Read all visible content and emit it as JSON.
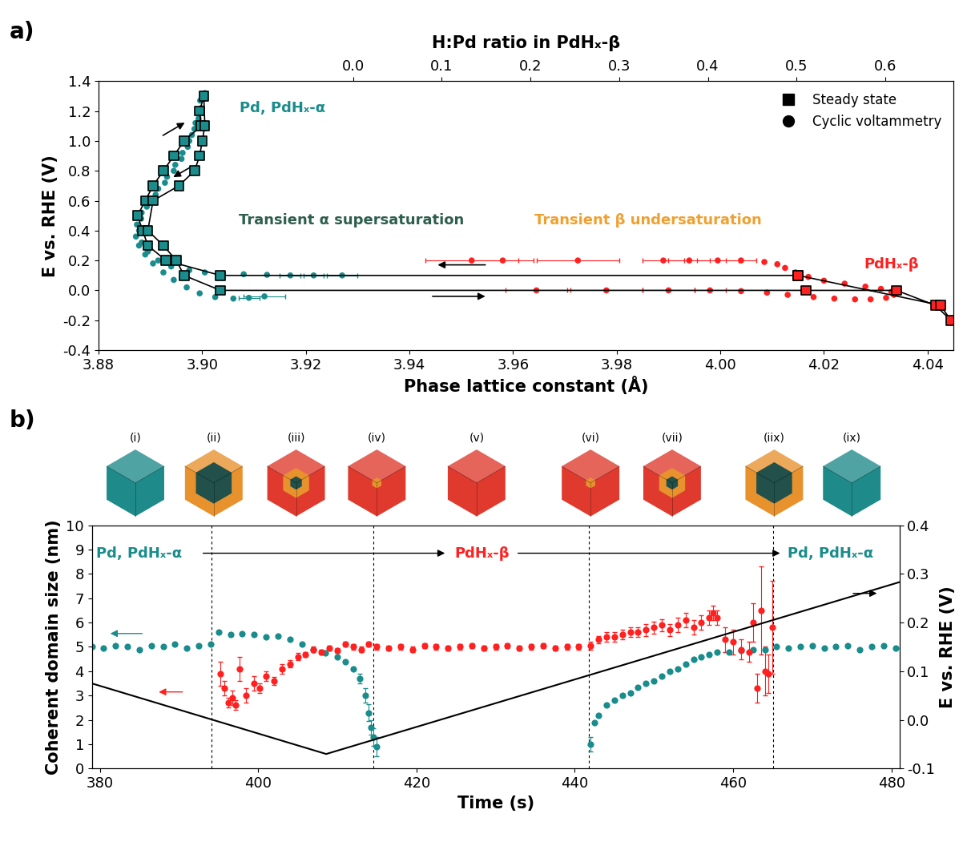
{
  "chart_data": [
    {
      "type": "scatter",
      "panel_label": "a)",
      "x_label": "Phase lattice constant (Å)",
      "y_label": "E vs. RHE (V)",
      "x2_label": "H:Pd ratio in PdHₓ-β",
      "xlim": [
        3.88,
        4.045
      ],
      "xticks": [
        3.88,
        {
          "value": 3.9,
          "label": "3.90"
        },
        3.92,
        3.94,
        3.96,
        3.98,
        {
          "value": 4.0,
          "label": "4.00"
        },
        4.02,
        4.04
      ],
      "ylim": [
        -0.4,
        1.4
      ],
      "yticks": [
        -0.4,
        -0.2,
        0.0,
        0.2,
        0.4,
        0.6,
        0.8,
        1.0,
        1.2,
        1.4
      ],
      "x2lim": [
        -0.287,
        0.677
      ],
      "x2ticks": [
        0.0,
        0.1,
        0.2,
        0.3,
        0.4,
        0.5,
        0.6
      ],
      "legend": "upper right",
      "annotations": [
        {
          "text": "Pd, PdHₓ-α",
          "color": "#1a8c8c"
        },
        {
          "text": "PdHₓ-β",
          "color": "#ff2020"
        },
        {
          "text": "Transient α supersaturation",
          "color": "#2e5e4e"
        },
        {
          "text": "Transient β undersaturation",
          "color": "#f0a030"
        }
      ],
      "series": [
        {
          "name": "Steady state",
          "marker": "square",
          "color": "#000000",
          "line_style": "solid",
          "x": [
            4.015,
            3.9035,
            3.893,
            3.8895,
            3.8885,
            3.8875,
            3.889,
            3.8905,
            3.8925,
            3.8945,
            3.8965,
            3.8998,
            3.8995,
            3.9003,
            3.9005,
            3.9,
            3.8995,
            3.8985,
            3.8955,
            3.8905,
            3.8895,
            3.8925,
            3.895,
            3.8965,
            3.9035,
            4.0165,
            4.034,
            4.0415,
            4.0445,
            4.0425,
            4.015
          ],
          "values": [
            0.1,
            0.1,
            0.2,
            0.3,
            0.4,
            0.5,
            0.6,
            0.7,
            0.8,
            0.9,
            1.0,
            1.1,
            1.2,
            1.3,
            1.1,
            1.0,
            0.9,
            0.8,
            0.7,
            0.6,
            0.4,
            0.3,
            0.2,
            0.1,
            0.0,
            0.0,
            0.0,
            -0.1,
            -0.2,
            -0.1,
            0.1
          ],
          "colors": [
            "#ff2020",
            "#1a8c8c",
            "#1a8c8c",
            "#1a8c8c",
            "#1a8c8c",
            "#1a8c8c",
            "#1a8c8c",
            "#1a8c8c",
            "#1a8c8c",
            "#1a8c8c",
            "#1a8c8c",
            "#1a8c8c",
            "#1a8c8c",
            "#1a8c8c",
            "#1a8c8c",
            "#1a8c8c",
            "#1a8c8c",
            "#1a8c8c",
            "#1a8c8c",
            "#1a8c8c",
            "#1a8c8c",
            "#1a8c8c",
            "#1a8c8c",
            "#1a8c8c",
            "#1a8c8c",
            "#ff2020",
            "#ff2020",
            "#ff2020",
            "#ff2020",
            "#ff2020",
            "#ff2020"
          ]
        },
        {
          "name": "Cyclic voltammetry",
          "marker": "circle",
          "color": "#000000",
          "x": [
            3.9005,
            3.9002,
            3.8998,
            3.8993,
            3.8985,
            3.8975,
            3.8962,
            3.8948,
            3.8932,
            3.8915,
            3.8898,
            3.8883,
            3.8874,
            3.8872,
            3.8878,
            3.889,
            3.8905,
            3.8925,
            3.8945,
            3.897,
            3.8995,
            3.9025,
            3.906,
            3.909,
            3.912,
            3.927,
            3.9215,
            3.917,
            3.9125,
            3.908,
            3.904,
            3.9005,
            3.8975,
            3.894,
            3.8915,
            3.8895,
            3.8883,
            3.8878,
            3.8882,
            3.8893,
            3.891,
            3.8928,
            3.8945,
            3.896,
            3.8972,
            3.898,
            3.8987,
            3.8992,
            3.8996,
            3.9645,
            3.978,
            3.99,
            3.998,
            4.004,
            4.009,
            4.013,
            4.018,
            4.022,
            4.026,
            4.029,
            4.032,
            4.0335,
            4.033,
            4.031,
            4.028,
            4.024,
            4.02,
            4.017,
            4.0145,
            4.0125,
            4.011,
            4.0085,
            4.004,
            3.9995,
            3.994,
            3.989,
            3.9725,
            3.958,
            3.952
          ],
          "values": [
            1.32,
            1.28,
            1.22,
            1.15,
            1.08,
            1.0,
            0.92,
            0.84,
            0.76,
            0.68,
            0.6,
            0.52,
            0.44,
            0.36,
            0.3,
            0.24,
            0.18,
            0.12,
            0.07,
            0.02,
            -0.02,
            -0.045,
            -0.055,
            -0.05,
            -0.04,
            0.1,
            0.1,
            0.1,
            0.104,
            0.108,
            0.112,
            0.12,
            0.135,
            0.16,
            0.2,
            0.26,
            0.32,
            0.4,
            0.48,
            0.56,
            0.64,
            0.72,
            0.8,
            0.88,
            0.96,
            1.04,
            1.12,
            1.2,
            1.27,
            0.0,
            0.0,
            0.0,
            0.0,
            -0.005,
            -0.015,
            -0.03,
            -0.045,
            -0.055,
            -0.06,
            -0.06,
            -0.05,
            -0.03,
            -0.01,
            0.01,
            0.025,
            0.045,
            0.065,
            0.09,
            0.12,
            0.15,
            0.175,
            0.19,
            0.2,
            0.2,
            0.2,
            0.2,
            0.2,
            0.2,
            0.2
          ],
          "x_err": [
            0,
            0,
            0,
            0,
            0,
            0,
            0,
            0,
            0,
            0,
            0,
            0,
            0,
            0,
            0,
            0,
            0,
            0,
            0,
            0,
            0,
            0,
            0,
            0.002,
            0.004,
            0.003,
            0.002,
            0.002,
            0,
            0,
            0,
            0,
            0,
            0,
            0,
            0,
            0,
            0,
            0,
            0,
            0,
            0,
            0,
            0,
            0,
            0,
            0,
            0,
            0,
            0.006,
            0.007,
            0.005,
            0.003,
            0,
            0,
            0,
            0,
            0,
            0,
            0,
            0,
            0,
            0,
            0,
            0,
            0,
            0,
            0,
            0,
            0,
            0,
            0,
            0.003,
            0.004,
            0.004,
            0.004,
            0.008,
            0.006,
            0.009
          ],
          "colors": [
            "#1a8c8c",
            "#1a8c8c",
            "#1a8c8c",
            "#1a8c8c",
            "#1a8c8c",
            "#1a8c8c",
            "#1a8c8c",
            "#1a8c8c",
            "#1a8c8c",
            "#1a8c8c",
            "#1a8c8c",
            "#1a8c8c",
            "#1a8c8c",
            "#1a8c8c",
            "#1a8c8c",
            "#1a8c8c",
            "#1a8c8c",
            "#1a8c8c",
            "#1a8c8c",
            "#1a8c8c",
            "#1a8c8c",
            "#1a8c8c",
            "#1a8c8c",
            "#1a8c8c",
            "#1a8c8c",
            "#1a8c8c",
            "#1a8c8c",
            "#1a8c8c",
            "#1a8c8c",
            "#1a8c8c",
            "#1a8c8c",
            "#1a8c8c",
            "#1a8c8c",
            "#1a8c8c",
            "#1a8c8c",
            "#1a8c8c",
            "#1a8c8c",
            "#1a8c8c",
            "#1a8c8c",
            "#1a8c8c",
            "#1a8c8c",
            "#1a8c8c",
            "#1a8c8c",
            "#1a8c8c",
            "#1a8c8c",
            "#1a8c8c",
            "#1a8c8c",
            "#1a8c8c",
            "#1a8c8c",
            "#ff2020",
            "#ff2020",
            "#ff2020",
            "#ff2020",
            "#ff2020",
            "#ff2020",
            "#ff2020",
            "#ff2020",
            "#ff2020",
            "#ff2020",
            "#ff2020",
            "#ff2020",
            "#ff2020",
            "#ff2020",
            "#ff2020",
            "#ff2020",
            "#ff2020",
            "#ff2020",
            "#ff2020",
            "#ff2020",
            "#ff2020",
            "#ff2020",
            "#ff2020",
            "#ff2020",
            "#ff2020",
            "#ff2020",
            "#ff2020",
            "#ff2020",
            "#ff2020",
            "#ff2020"
          ]
        }
      ]
    },
    {
      "type": "scatter",
      "panel_label": "b)",
      "x_label": "Time (s)",
      "y_label": "Coherent domain size (nm)",
      "y2_label": "E vs. RHE (V)",
      "xlim": [
        379,
        481
      ],
      "xticks": [
        380,
        400,
        420,
        440,
        460,
        480
      ],
      "ylim": [
        0,
        10
      ],
      "yticks": [
        0,
        1,
        2,
        3,
        4,
        5,
        6,
        7,
        8,
        9,
        10
      ],
      "y2lim": [
        -0.1,
        0.4
      ],
      "y2ticks": [
        -0.1,
        0.0,
        0.1,
        0.2,
        0.3,
        0.4
      ],
      "vlines": [
        394.1,
        414.6,
        441.8,
        465.1
      ],
      "annotations": [
        {
          "text": "Pd, PdHₓ-α",
          "color": "#1a8c8c"
        },
        {
          "text": "PdHₓ-β",
          "color": "#ff2020"
        },
        {
          "text": "Pd, PdHₓ-α",
          "color": "#1a8c8c"
        }
      ],
      "stages": [
        {
          "label": "(i)",
          "t": 384.5,
          "colors": [
            "#1f8a8a"
          ]
        },
        {
          "label": "(ii)",
          "t": 394.4,
          "colors": [
            "#e8922e",
            "#22504a"
          ]
        },
        {
          "label": "(iii)",
          "t": 404.8,
          "colors": [
            "#e03a2e",
            "#e8922e",
            "#22504a"
          ]
        },
        {
          "label": "(iv)",
          "t": 415,
          "colors": [
            "#e03a2e",
            "#e8922e"
          ]
        },
        {
          "label": "(v)",
          "t": 427.6,
          "colors": [
            "#e03a2e"
          ]
        },
        {
          "label": "(vi)",
          "t": 442,
          "colors": [
            "#e03a2e",
            "#e8922e"
          ]
        },
        {
          "label": "(vii)",
          "t": 452.3,
          "colors": [
            "#e03a2e",
            "#e8922e",
            "#22504a"
          ]
        },
        {
          "label": "(iix)",
          "t": 465.2,
          "colors": [
            "#e8922e",
            "#22504a"
          ]
        },
        {
          "label": "(ix)",
          "t": 475,
          "colors": [
            "#1f8a8a"
          ]
        }
      ],
      "series": [
        {
          "color": "#1a8c8c",
          "marker": "circle",
          "x": [
            379,
            380.5,
            382,
            383.5,
            385,
            386.5,
            388,
            389.5,
            391,
            392.5,
            394,
            395,
            396.5,
            398,
            399.5,
            401,
            402.5,
            404,
            405.5,
            407,
            408.5,
            410,
            411,
            412,
            412.8,
            413.5,
            414,
            414.3,
            414.6,
            415,
            442,
            442.5,
            443,
            444,
            445,
            446,
            447,
            448,
            449,
            450,
            451,
            452,
            453,
            454,
            455,
            456,
            457,
            458,
            459.5,
            461,
            462.5,
            464,
            465.5,
            467,
            468.5,
            470,
            471.5,
            473,
            474.5,
            476,
            477.5,
            479,
            480.5
          ],
          "values": [
            5.0,
            4.95,
            5.05,
            5.0,
            4.9,
            5.05,
            5.0,
            5.1,
            4.95,
            5.05,
            5.1,
            5.6,
            5.5,
            5.55,
            5.5,
            5.4,
            5.45,
            5.3,
            5.1,
            4.9,
            4.75,
            4.6,
            4.4,
            4.1,
            3.7,
            3.0,
            2.3,
            1.7,
            1.3,
            0.9,
            1.0,
            1.9,
            2.2,
            2.6,
            2.8,
            3.0,
            3.1,
            3.35,
            3.5,
            3.6,
            3.8,
            4.0,
            4.1,
            4.3,
            4.5,
            4.6,
            4.7,
            4.8,
            4.8,
            4.85,
            4.9,
            4.9,
            5.0,
            4.95,
            5.0,
            5.05,
            4.95,
            5.0,
            5.05,
            4.9,
            5.0,
            5.05,
            4.95
          ],
          "y_err": [
            0,
            0,
            0,
            0,
            0,
            0,
            0,
            0,
            0,
            0,
            0,
            0,
            0,
            0,
            0,
            0,
            0,
            0,
            0,
            0,
            0,
            0,
            0,
            0,
            0.2,
            0.3,
            0.35,
            0.3,
            0.35,
            0.4,
            0.3,
            0,
            0,
            0,
            0,
            0,
            0,
            0,
            0,
            0,
            0,
            0,
            0,
            0,
            0,
            0,
            0,
            0,
            0,
            0,
            0,
            0,
            0,
            0,
            0,
            0,
            0,
            0,
            0,
            0,
            0,
            0,
            0
          ]
        },
        {
          "color": "#ff2020",
          "marker": "circle",
          "x": [
            395.2,
            395.7,
            396.2,
            396.7,
            397.2,
            397.7,
            398.5,
            399.5,
            400.2,
            401,
            402,
            403,
            404,
            405,
            406,
            407,
            408,
            409,
            410,
            411,
            412,
            413,
            414,
            415,
            416.5,
            418,
            419.5,
            421,
            422.5,
            424,
            425.5,
            427,
            428.5,
            430,
            431.5,
            433,
            434.5,
            436,
            437.5,
            439,
            440.5,
            442,
            443,
            444,
            445,
            446,
            447,
            448,
            449,
            450,
            451,
            452,
            453,
            454,
            455,
            456,
            457,
            457.5,
            458,
            459,
            460,
            461,
            462,
            462.5,
            463,
            463.5,
            464,
            464.5,
            465
          ],
          "values": [
            3.9,
            3.3,
            2.7,
            2.9,
            2.6,
            4.1,
            3.0,
            3.5,
            3.3,
            3.8,
            3.6,
            4.1,
            4.3,
            4.6,
            4.7,
            4.9,
            4.8,
            4.95,
            4.85,
            5.1,
            5.0,
            4.9,
            5.1,
            5.0,
            4.95,
            5.0,
            4.9,
            5.05,
            5.0,
            4.95,
            5.0,
            5.05,
            4.95,
            5.0,
            5.05,
            4.95,
            5.0,
            5.05,
            4.95,
            5.0,
            5.0,
            5.05,
            5.3,
            5.4,
            5.4,
            5.5,
            5.6,
            5.6,
            5.7,
            5.8,
            5.9,
            5.7,
            5.9,
            6.1,
            5.8,
            6.0,
            6.2,
            6.4,
            6.2,
            5.3,
            5.2,
            4.9,
            4.8,
            6.0,
            3.3,
            6.5,
            4.0,
            3.9,
            5.8
          ],
          "y_err": [
            0.5,
            0.3,
            0.2,
            0.3,
            0.2,
            0.5,
            0.3,
            0.3,
            0.2,
            0.2,
            0.15,
            0.2,
            0.15,
            0.15,
            0.1,
            0.1,
            0.1,
            0.1,
            0.1,
            0.1,
            0.1,
            0.1,
            0.1,
            0.1,
            0.1,
            0.1,
            0.1,
            0.1,
            0.1,
            0.1,
            0.1,
            0.1,
            0.1,
            0.1,
            0.1,
            0.1,
            0.1,
            0.1,
            0.1,
            0.1,
            0.1,
            0.15,
            0.15,
            0.2,
            0.2,
            0.2,
            0.2,
            0.2,
            0.25,
            0.25,
            0.25,
            0.25,
            0.3,
            0.3,
            0.3,
            0.3,
            0.3,
            0.3,
            0.3,
            0.5,
            0.5,
            0.4,
            0.4,
            0.8,
            0.6,
            1.8,
            1.0,
            0.8,
            1.9
          ]
        },
        {
          "type": "line",
          "axis": "y2",
          "color": "#000000",
          "line_style": "solid",
          "x": [
            379,
            408.6,
            481
          ],
          "values": [
            0.075,
            -0.07,
            0.283
          ]
        }
      ]
    }
  ]
}
